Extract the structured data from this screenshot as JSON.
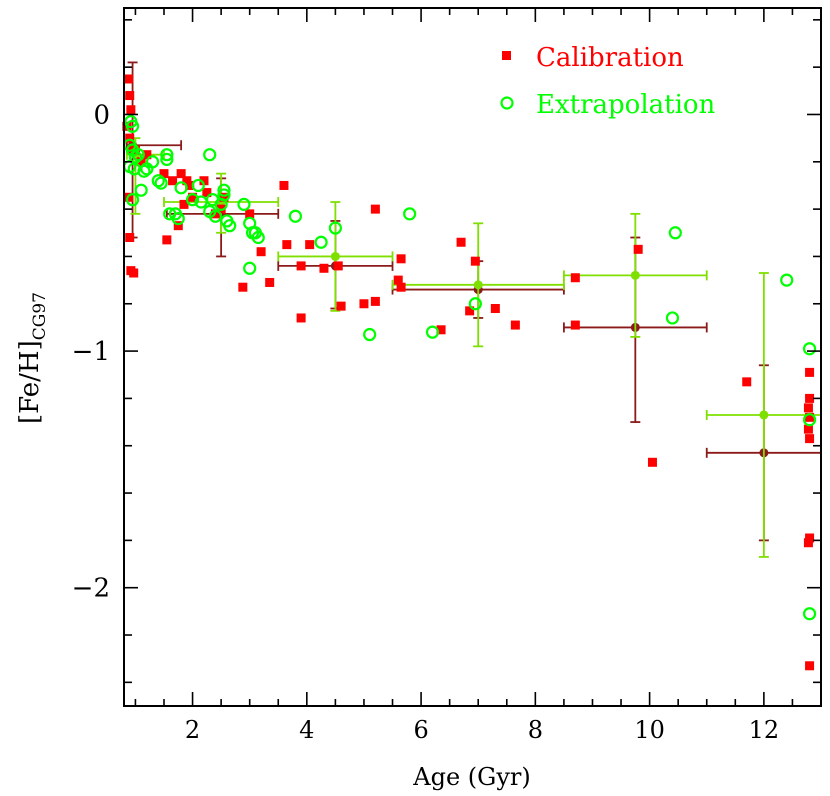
{
  "chart_data": {
    "type": "scatter",
    "xlabel": "Age (Gyr)",
    "ylabel_main": "[Fe/H]",
    "ylabel_sub": "CG97",
    "xlim": [
      0.8,
      13.0
    ],
    "ylim": [
      -2.5,
      0.45
    ],
    "xticks": [
      2,
      4,
      6,
      8,
      10,
      12
    ],
    "yticks": [
      0,
      -1,
      -2
    ],
    "xtick_labels": [
      "2",
      "4",
      "6",
      "8",
      "10",
      "12"
    ],
    "ytick_labels": [
      "0",
      "−1",
      "−2"
    ],
    "legend": [
      {
        "label": "Calibration",
        "color": "#ff0000",
        "marker": "filled-square"
      },
      {
        "label": "Extrapolation",
        "color": "#00ff00",
        "marker": "open-circle"
      }
    ],
    "series": [
      {
        "name": "Calibration",
        "color": "#ff0000",
        "points": [
          [
            0.85,
            -0.05
          ],
          [
            0.88,
            0.15
          ],
          [
            0.9,
            0.08
          ],
          [
            0.92,
            0.02
          ],
          [
            0.9,
            -0.1
          ],
          [
            0.95,
            -0.15
          ],
          [
            0.88,
            -0.35
          ],
          [
            0.9,
            -0.52
          ],
          [
            0.92,
            -0.66
          ],
          [
            0.97,
            -0.67
          ],
          [
            1.0,
            -0.15
          ],
          [
            1.1,
            -0.2
          ],
          [
            1.2,
            -0.17
          ],
          [
            1.5,
            -0.25
          ],
          [
            1.55,
            -0.53
          ],
          [
            1.65,
            -0.28
          ],
          [
            1.8,
            -0.25
          ],
          [
            1.85,
            -0.38
          ],
          [
            1.9,
            -0.28
          ],
          [
            1.95,
            -0.3
          ],
          [
            1.75,
            -0.47
          ],
          [
            2.0,
            -0.35
          ],
          [
            2.2,
            -0.28
          ],
          [
            2.25,
            -0.33
          ],
          [
            2.4,
            -0.42
          ],
          [
            2.5,
            -0.4
          ],
          [
            2.55,
            -0.35
          ],
          [
            2.88,
            -0.73
          ],
          [
            3.0,
            -0.42
          ],
          [
            3.2,
            -0.58
          ],
          [
            3.35,
            -0.71
          ],
          [
            3.6,
            -0.3
          ],
          [
            3.65,
            -0.55
          ],
          [
            3.9,
            -0.86
          ],
          [
            3.9,
            -0.64
          ],
          [
            4.05,
            -0.55
          ],
          [
            4.3,
            -0.65
          ],
          [
            4.55,
            -0.64
          ],
          [
            4.6,
            -0.81
          ],
          [
            5.0,
            -0.8
          ],
          [
            5.2,
            -0.79
          ],
          [
            5.2,
            -0.4
          ],
          [
            5.6,
            -0.7
          ],
          [
            5.65,
            -0.73
          ],
          [
            5.65,
            -0.61
          ],
          [
            6.35,
            -0.91
          ],
          [
            6.7,
            -0.54
          ],
          [
            6.85,
            -0.83
          ],
          [
            6.95,
            -0.62
          ],
          [
            7.3,
            -0.82
          ],
          [
            7.65,
            -0.89
          ],
          [
            8.7,
            -0.69
          ],
          [
            8.7,
            -0.89
          ],
          [
            9.8,
            -0.57
          ],
          [
            10.05,
            -1.47
          ],
          [
            11.7,
            -1.13
          ],
          [
            12.8,
            -1.09
          ],
          [
            12.8,
            -1.2
          ],
          [
            12.78,
            -1.24
          ],
          [
            12.8,
            -1.28
          ],
          [
            12.78,
            -1.33
          ],
          [
            12.8,
            -1.37
          ],
          [
            12.8,
            -1.79
          ],
          [
            12.78,
            -1.81
          ],
          [
            12.8,
            -2.33
          ]
        ]
      },
      {
        "name": "Extrapolation",
        "color": "#00ff00",
        "points": [
          [
            0.92,
            -0.03
          ],
          [
            0.95,
            -0.05
          ],
          [
            0.9,
            -0.13
          ],
          [
            0.95,
            -0.15
          ],
          [
            0.9,
            -0.22
          ],
          [
            0.98,
            -0.23
          ],
          [
            0.95,
            -0.36
          ],
          [
            1.0,
            -0.18
          ],
          [
            1.05,
            -0.17
          ],
          [
            1.1,
            -0.32
          ],
          [
            1.15,
            -0.24
          ],
          [
            1.2,
            -0.23
          ],
          [
            1.3,
            -0.2
          ],
          [
            1.4,
            -0.28
          ],
          [
            1.45,
            -0.29
          ],
          [
            1.55,
            -0.17
          ],
          [
            1.55,
            -0.19
          ],
          [
            1.6,
            -0.42
          ],
          [
            1.7,
            -0.42
          ],
          [
            1.75,
            -0.44
          ],
          [
            1.8,
            -0.31
          ],
          [
            2.0,
            -0.36
          ],
          [
            2.1,
            -0.3
          ],
          [
            2.15,
            -0.37
          ],
          [
            2.3,
            -0.17
          ],
          [
            2.3,
            -0.41
          ],
          [
            2.35,
            -0.36
          ],
          [
            2.4,
            -0.43
          ],
          [
            2.5,
            -0.38
          ],
          [
            2.55,
            -0.32
          ],
          [
            2.55,
            -0.34
          ],
          [
            2.6,
            -0.45
          ],
          [
            2.65,
            -0.47
          ],
          [
            2.9,
            -0.38
          ],
          [
            3.0,
            -0.46
          ],
          [
            3.0,
            -0.65
          ],
          [
            3.05,
            -0.5
          ],
          [
            3.1,
            -0.5
          ],
          [
            3.15,
            -0.52
          ],
          [
            3.8,
            -0.43
          ],
          [
            4.25,
            -0.54
          ],
          [
            4.5,
            -0.48
          ],
          [
            5.1,
            -0.93
          ],
          [
            5.8,
            -0.42
          ],
          [
            6.2,
            -0.92
          ],
          [
            6.95,
            -0.8
          ],
          [
            10.4,
            -0.86
          ],
          [
            10.45,
            -0.5
          ],
          [
            12.4,
            -0.7
          ],
          [
            12.8,
            -0.99
          ],
          [
            12.8,
            -1.29
          ],
          [
            12.8,
            -2.11
          ]
        ]
      }
    ],
    "binned": [
      {
        "name": "Calibration bins",
        "color": "#8b1a1a",
        "bins": [
          {
            "x": 0.95,
            "y": -0.13,
            "xlo": 0.85,
            "xhi": 1.8,
            "ylo": -0.52,
            "yhi": 0.22
          },
          {
            "x": 2.5,
            "y": -0.42,
            "xlo": 1.55,
            "xhi": 3.5,
            "ylo": -0.6,
            "yhi": -0.27
          },
          {
            "x": 4.5,
            "y": -0.64,
            "xlo": 3.5,
            "xhi": 5.5,
            "ylo": -0.82,
            "yhi": -0.45
          },
          {
            "x": 7.0,
            "y": -0.74,
            "xlo": 5.5,
            "xhi": 8.5,
            "ylo": -0.86,
            "yhi": -0.62
          },
          {
            "x": 9.75,
            "y": -0.9,
            "xlo": 8.5,
            "xhi": 11.0,
            "ylo": -1.3,
            "yhi": -0.52
          },
          {
            "x": 12.0,
            "y": -1.43,
            "xlo": 11.0,
            "xhi": 13.0,
            "ylo": -1.8,
            "yhi": -1.06
          }
        ]
      },
      {
        "name": "Extrapolation bins",
        "color": "#7fe000",
        "bins": [
          {
            "x": 1.0,
            "y": -0.17,
            "xlo": 0.85,
            "xhi": 1.5,
            "ylo": -0.42,
            "yhi": -0.1
          },
          {
            "x": 2.5,
            "y": -0.37,
            "xlo": 1.5,
            "xhi": 3.5,
            "ylo": -0.5,
            "yhi": -0.25
          },
          {
            "x": 4.5,
            "y": -0.6,
            "xlo": 3.5,
            "xhi": 5.5,
            "ylo": -0.83,
            "yhi": -0.37
          },
          {
            "x": 7.0,
            "y": -0.72,
            "xlo": 5.5,
            "xhi": 8.5,
            "ylo": -0.98,
            "yhi": -0.46
          },
          {
            "x": 9.75,
            "y": -0.68,
            "xlo": 8.5,
            "xhi": 11.0,
            "ylo": -0.94,
            "yhi": -0.42
          },
          {
            "x": 12.0,
            "y": -1.27,
            "xlo": 11.0,
            "xhi": 13.0,
            "ylo": -1.87,
            "yhi": -0.67
          }
        ]
      }
    ],
    "grid": false,
    "legend_position": "top-right"
  }
}
